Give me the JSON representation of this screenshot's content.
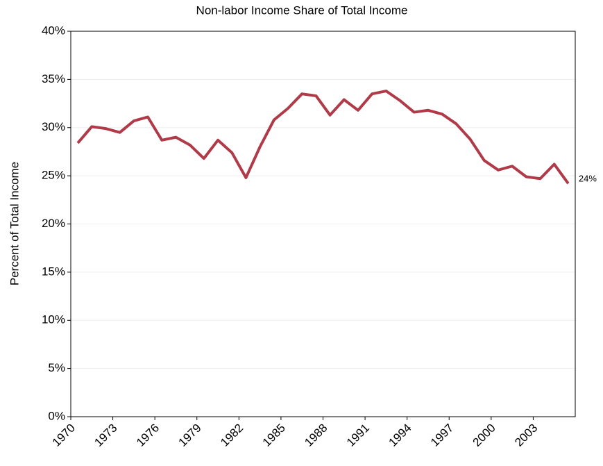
{
  "chart_data": {
    "type": "line",
    "title": "Non-labor Income Share of Total Income",
    "y_label": "Percent of Total Income",
    "categories": [
      "1970",
      null,
      null,
      "1973",
      null,
      null,
      "1976",
      null,
      null,
      "1979",
      null,
      null,
      "1982",
      null,
      null,
      "1985",
      null,
      null,
      "1988",
      null,
      null,
      "1991",
      null,
      null,
      "1994",
      null,
      null,
      "1997",
      null,
      null,
      "2000",
      null,
      null,
      "2003",
      null,
      null
    ],
    "series": [
      {
        "name": "Non-labor income share",
        "color": "#b03a48",
        "values": [
          28.4,
          30.1,
          29.9,
          29.5,
          30.7,
          31.1,
          28.7,
          29.0,
          28.2,
          26.8,
          28.7,
          27.4,
          24.8,
          28.0,
          30.8,
          32.0,
          33.5,
          33.3,
          31.3,
          32.9,
          31.8,
          33.5,
          33.8,
          32.8,
          31.6,
          31.8,
          31.4,
          30.4,
          28.8,
          26.6,
          25.6,
          26.0,
          24.9,
          24.7,
          26.2,
          24.2
        ],
        "value_labels": [
          null,
          null,
          null,
          null,
          null,
          null,
          null,
          null,
          null,
          null,
          null,
          null,
          null,
          null,
          null,
          null,
          null,
          null,
          null,
          null,
          null,
          null,
          null,
          null,
          null,
          null,
          null,
          null,
          null,
          null,
          null,
          null,
          null,
          null,
          null,
          "24%"
        ]
      }
    ],
    "ylim": [
      0,
      40
    ],
    "yticks": [
      {
        "value": 0,
        "label": "0%"
      },
      {
        "value": 5,
        "label": "5%"
      },
      {
        "value": 10,
        "label": "10%"
      },
      {
        "value": 15,
        "label": "15%"
      },
      {
        "value": 20,
        "label": "20%"
      },
      {
        "value": 25,
        "label": "25%"
      },
      {
        "value": 30,
        "label": "30%"
      },
      {
        "value": 35,
        "label": "35%"
      },
      {
        "value": 40,
        "label": "40%"
      }
    ],
    "grid": true
  }
}
